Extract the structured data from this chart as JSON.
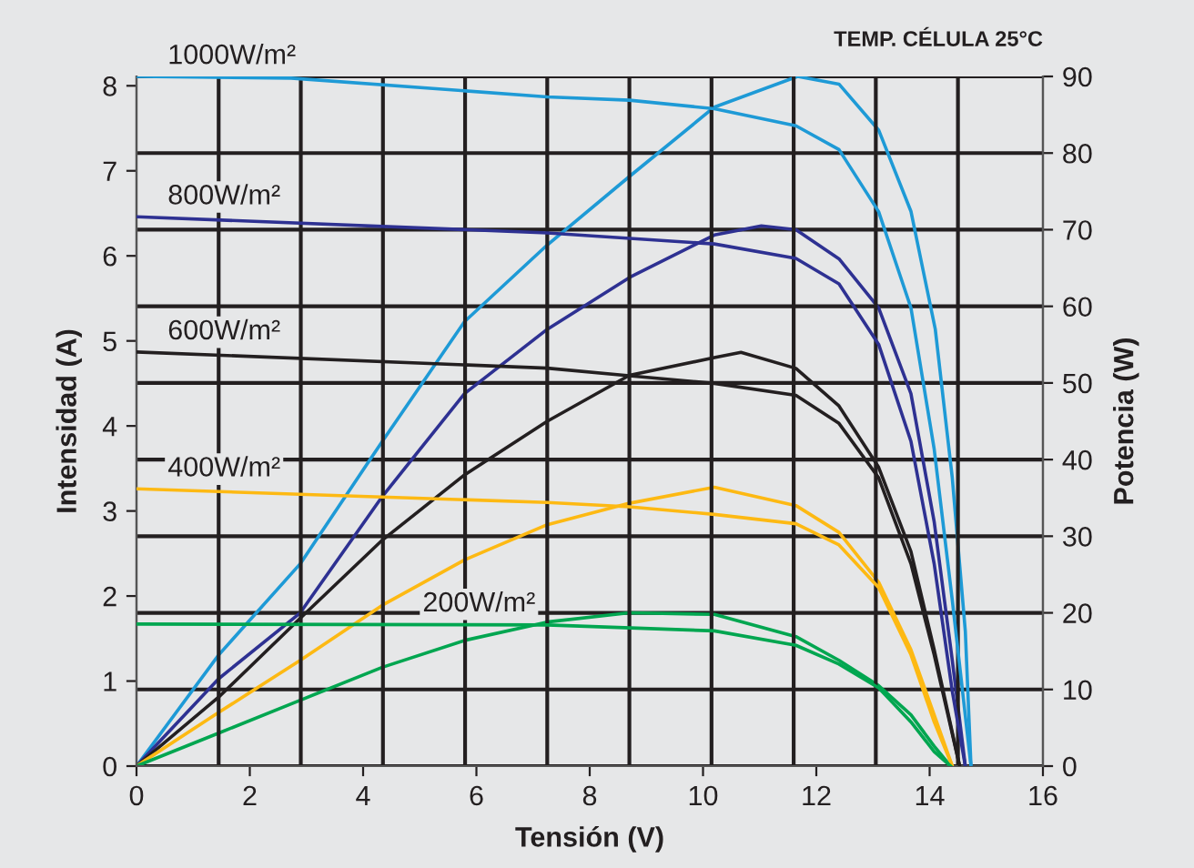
{
  "chart_data": {
    "type": "line",
    "title": "TEMP. CÉLULA 25°C",
    "xlabel": "Tensión (V)",
    "ylabel": "Intensidad (A)",
    "y2label": "Potencia (W)",
    "xlim": [
      0,
      16
    ],
    "ylim": [
      0,
      8.11
    ],
    "y2lim": [
      0,
      90
    ],
    "xticks": [
      0,
      {
        "value": 1.45,
        "label": null
      },
      2,
      {
        "value": 2.9,
        "label": null
      },
      4,
      {
        "value": 4.35,
        "label": null
      },
      {
        "value": 5.8,
        "label": null
      },
      6,
      {
        "value": 7.25,
        "label": null
      },
      8,
      {
        "value": 8.7,
        "label": null
      },
      10,
      {
        "value": 10.15,
        "label": null
      },
      {
        "value": 11.6,
        "label": null
      },
      12,
      {
        "value": 13.05,
        "label": null
      },
      14,
      {
        "value": 14.5,
        "label": null
      },
      16
    ],
    "yticks": [
      0,
      1,
      2,
      3,
      4,
      5,
      6,
      7,
      8
    ],
    "y2ticks": [
      0,
      10,
      20,
      30,
      40,
      50,
      60,
      70,
      80,
      90
    ],
    "grid": true,
    "legend": false,
    "marker": "none",
    "line_style": "solid",
    "series": [
      {
        "name": "1000W/m²",
        "color": "#1e9ad6",
        "x": [
          0,
          2.73,
          7.25,
          8.7,
          10.2,
          11.64,
          12.4,
          13.1,
          13.67,
          14.08,
          14.4,
          14.73
        ],
        "values": [
          8.11,
          8.09,
          7.87,
          7.83,
          7.73,
          7.53,
          7.25,
          6.52,
          5.39,
          3.73,
          1.95,
          0
        ]
      },
      {
        "color": "#1e9ad6",
        "axis": "y2",
        "x": [
          0,
          1.45,
          2.89,
          4.34,
          5.79,
          7.25,
          8.71,
          10.2,
          11.67,
          12.4,
          13.1,
          13.67,
          14.1,
          14.4,
          14.63,
          14.73
        ],
        "values": [
          0,
          14.5,
          26.4,
          42.4,
          58,
          68,
          77,
          86,
          90,
          89,
          83,
          72.4,
          57,
          37.6,
          17.6,
          0
        ]
      },
      {
        "name": "800W/m²",
        "color": "#2e3192",
        "x": [
          0,
          7.25,
          10.2,
          11.64,
          12.4,
          13.1,
          13.67,
          14.08,
          14.4,
          14.63
        ],
        "values": [
          6.46,
          6.27,
          6.14,
          5.97,
          5.67,
          4.96,
          3.82,
          2.38,
          0.88,
          0
        ]
      },
      {
        "color": "#2e3192",
        "axis": "y2",
        "x": [
          0,
          1.45,
          2.89,
          4.34,
          5.79,
          7.25,
          8.71,
          10.2,
          11.03,
          11.64,
          12.4,
          13.1,
          13.67,
          14.08,
          14.4,
          14.63
        ],
        "values": [
          0,
          11.4,
          20,
          35.2,
          48.6,
          57,
          63.8,
          69.3,
          70.5,
          70,
          66.2,
          59.8,
          48.6,
          31.9,
          13.8,
          0
        ]
      },
      {
        "name": "600W/m²",
        "color": "#231f20",
        "x": [
          0,
          7.25,
          8.7,
          10.2,
          11.64,
          12.4,
          13.1,
          13.67,
          14.08,
          14.53
        ],
        "values": [
          4.87,
          4.68,
          4.59,
          4.5,
          4.36,
          4.03,
          3.39,
          2.38,
          1.31,
          0
        ]
      },
      {
        "color": "#231f20",
        "axis": "y2",
        "x": [
          0,
          1.45,
          2.89,
          4.34,
          5.79,
          7.25,
          8.7,
          10.2,
          10.67,
          11.64,
          12.4,
          13.1,
          13.67,
          14.08,
          14.53
        ],
        "values": [
          0,
          9,
          19.3,
          29.5,
          38,
          45,
          51,
          53.3,
          54,
          51.9,
          47,
          39,
          28,
          15.2,
          0
        ]
      },
      {
        "name": "400W/m²",
        "color": "#fdb913",
        "x": [
          0,
          7.25,
          8.7,
          10.2,
          11.64,
          12.4,
          13.1,
          13.67,
          14.08,
          14.4
        ],
        "values": [
          3.26,
          3.1,
          3.05,
          2.96,
          2.85,
          2.6,
          2.1,
          1.31,
          0.52,
          0
        ]
      },
      {
        "color": "#fdb913",
        "axis": "y2",
        "x": [
          0,
          1.45,
          2.89,
          4.34,
          5.79,
          7.25,
          8.7,
          10.2,
          11.64,
          12.4,
          13.1,
          13.67,
          14.08,
          14.4
        ],
        "values": [
          0,
          7,
          13.8,
          21,
          26.9,
          31.5,
          34.3,
          36.4,
          34,
          30.5,
          24,
          15.2,
          6.7,
          0
        ]
      },
      {
        "name": "200W/m²",
        "color": "#00a650",
        "x": [
          0,
          7.25,
          10.2,
          11.64,
          12.4,
          13.1,
          13.67,
          14.08,
          14.37
        ],
        "values": [
          1.67,
          1.66,
          1.59,
          1.42,
          1.2,
          0.92,
          0.52,
          0.17,
          0
        ]
      },
      {
        "color": "#00a650",
        "axis": "y2",
        "x": [
          0,
          1.45,
          2.89,
          4.34,
          5.79,
          7.25,
          8.7,
          10.2,
          11.64,
          12.4,
          13.1,
          13.67,
          14.08,
          14.37
        ],
        "values": [
          0,
          4.3,
          8.6,
          12.9,
          16.4,
          18.8,
          20,
          19.8,
          16.9,
          13.8,
          10.5,
          6.7,
          2.6,
          0
        ]
      }
    ]
  }
}
